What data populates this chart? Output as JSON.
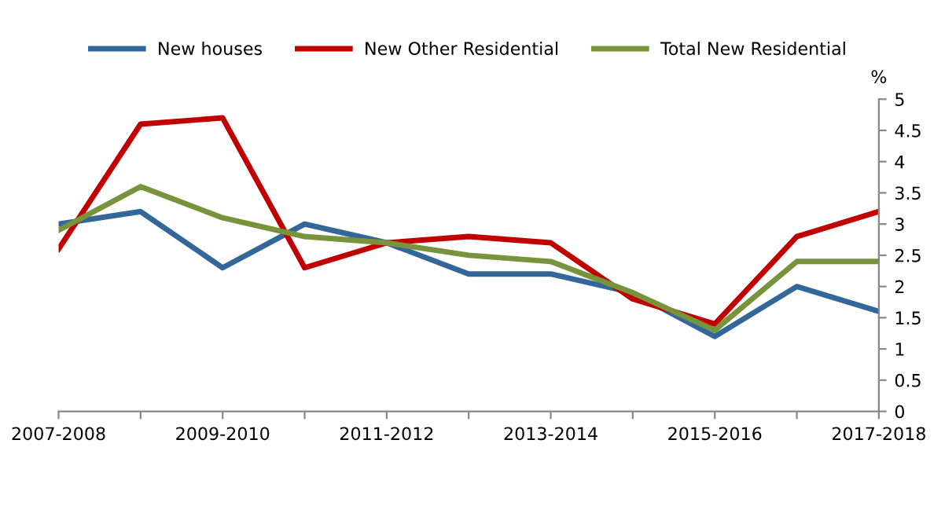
{
  "chart_data": {
    "type": "line",
    "ylabel": "%",
    "categories": [
      "2007-2008",
      null,
      "2009-2010",
      null,
      "2011-2012",
      null,
      "2013-2014",
      null,
      "2015-2016",
      null,
      "2017-2018"
    ],
    "series": [
      {
        "name": "New houses",
        "color": "#336699",
        "values": [
          3.0,
          3.2,
          2.3,
          3.0,
          2.7,
          2.2,
          2.2,
          1.9,
          1.2,
          2.0,
          1.6
        ]
      },
      {
        "name": "New Other Residential",
        "color": "#c00000",
        "values": [
          2.6,
          4.6,
          4.7,
          2.3,
          2.7,
          2.8,
          2.7,
          1.8,
          1.4,
          2.8,
          3.2
        ]
      },
      {
        "name": "Total New Residential",
        "color": "#77933c",
        "values": [
          2.9,
          3.6,
          3.1,
          2.8,
          2.7,
          2.5,
          2.4,
          1.9,
          1.3,
          2.4,
          2.4
        ]
      }
    ],
    "ylim": [
      0,
      5
    ],
    "yticks": [
      0,
      0.5,
      1,
      1.5,
      2,
      2.5,
      3,
      3.5,
      4,
      4.5,
      5
    ],
    "grid": false,
    "legend": "top",
    "marker": "none",
    "line_style": "solid"
  }
}
